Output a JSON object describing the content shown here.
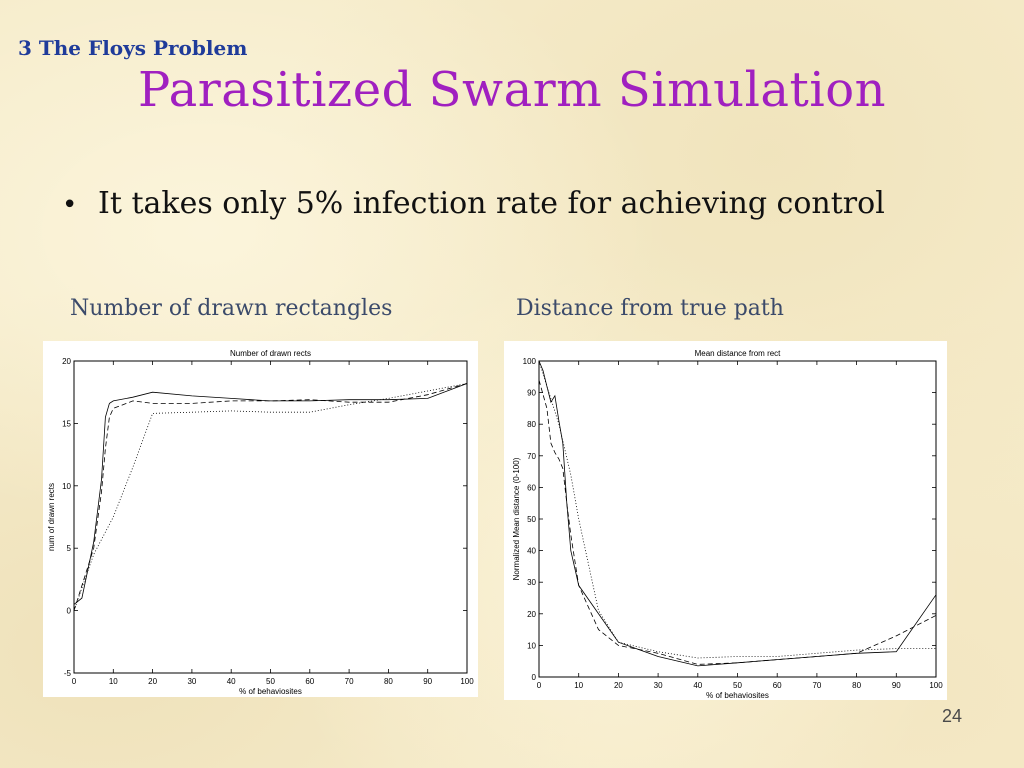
{
  "slide": {
    "section": "3 The Floys Problem",
    "title": "Parasitized Swarm Simulation",
    "bullet": "It takes only 5% infection rate for achieving control",
    "captions": [
      "Number of drawn rectangles",
      "Distance from true path"
    ],
    "page_number": "24"
  },
  "chart_data": [
    {
      "type": "line",
      "title": "Number of drawn rects",
      "xlabel": "% of behaviosites",
      "ylabel": "num of drawn rects",
      "xlim": [
        0,
        100
      ],
      "ylim": [
        -5,
        20
      ],
      "xticks": [
        0,
        10,
        20,
        30,
        40,
        50,
        60,
        70,
        80,
        90,
        100
      ],
      "yticks": [
        -5,
        0,
        5,
        10,
        15,
        20
      ],
      "grid": false,
      "series": [
        {
          "style": "solid",
          "x": [
            0,
            2,
            5,
            7,
            8,
            9,
            10,
            15,
            20,
            30,
            40,
            50,
            60,
            70,
            80,
            90,
            100
          ],
          "y": [
            0.5,
            1,
            5.5,
            10.5,
            15.5,
            16.6,
            16.8,
            17.1,
            17.5,
            17.2,
            17.0,
            16.8,
            16.8,
            16.9,
            16.9,
            17.0,
            18.2
          ]
        },
        {
          "style": "dashed",
          "x": [
            0,
            2,
            5,
            7,
            8,
            9,
            10,
            15,
            20,
            30,
            40,
            50,
            60,
            70,
            80,
            90,
            100
          ],
          "y": [
            0,
            2,
            5,
            9.5,
            13,
            15.5,
            16.2,
            16.8,
            16.6,
            16.6,
            16.8,
            16.8,
            16.9,
            16.7,
            16.7,
            17.3,
            18.2
          ]
        },
        {
          "style": "dotted",
          "x": [
            0,
            5,
            10,
            15,
            20,
            30,
            40,
            50,
            60,
            70,
            80,
            90,
            100
          ],
          "y": [
            0,
            4.5,
            7.5,
            11.5,
            15.8,
            15.9,
            16.0,
            15.9,
            15.9,
            16.5,
            17.0,
            17.6,
            18.2
          ]
        }
      ]
    },
    {
      "type": "line",
      "title": "Mean distance from rect",
      "xlabel": "% of behaviosites",
      "ylabel": "Normalized Mean distance (0-100)",
      "xlim": [
        0,
        100
      ],
      "ylim": [
        0,
        100
      ],
      "xticks": [
        0,
        10,
        20,
        30,
        40,
        50,
        60,
        70,
        80,
        90,
        100
      ],
      "yticks": [
        0,
        10,
        20,
        30,
        40,
        50,
        60,
        70,
        80,
        90,
        100
      ],
      "grid": false,
      "series": [
        {
          "style": "solid",
          "x": [
            0,
            1,
            2,
            3,
            4,
            5,
            6,
            7,
            8,
            10,
            20,
            30,
            40,
            50,
            60,
            70,
            80,
            90,
            100
          ],
          "y": [
            100,
            97,
            92,
            87,
            89,
            81,
            74,
            55,
            40,
            29,
            11,
            6.5,
            3.5,
            4.5,
            5.5,
            6.5,
            7.5,
            8,
            26
          ]
        },
        {
          "style": "dashed",
          "x": [
            0,
            2,
            3,
            4,
            5,
            6,
            7,
            8,
            10,
            15,
            20,
            30,
            40,
            50,
            60,
            70,
            80,
            90,
            100
          ],
          "y": [
            94,
            85,
            74,
            71,
            69,
            66,
            55,
            45,
            29,
            15,
            10,
            7.5,
            4,
            4.5,
            5.5,
            6.5,
            7.5,
            13,
            19.5
          ]
        },
        {
          "style": "dotted",
          "x": [
            0,
            5,
            8,
            10,
            15,
            20,
            30,
            40,
            50,
            60,
            70,
            80,
            90,
            100
          ],
          "y": [
            100,
            80,
            64,
            50,
            21,
            11,
            8,
            6,
            6.5,
            6.5,
            7.5,
            8.5,
            9,
            9
          ]
        }
      ]
    }
  ]
}
